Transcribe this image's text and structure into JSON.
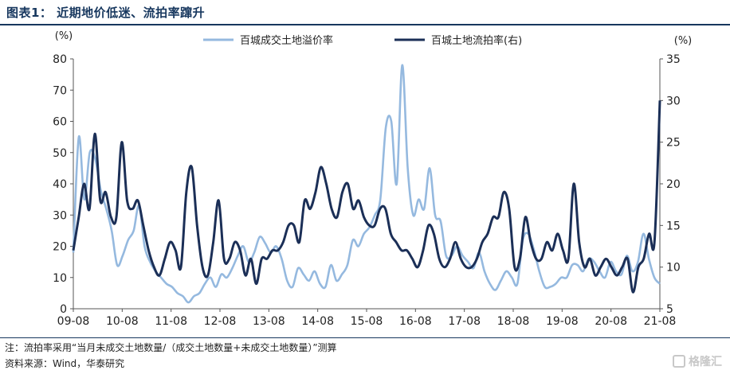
{
  "header": {
    "figure_title": "图表1：  近期地价低迷、流拍率蹿升"
  },
  "footer": {
    "note": "注：流拍率采用“当月未成交土地数量/（成交土地数量+未成交土地数量）”测算",
    "source": "资料来源：Wind，华泰研究",
    "watermark": "格隆汇"
  },
  "colors": {
    "premium": "#95B9DF",
    "failure": "#1B2F57",
    "title": "#17375E"
  },
  "chart_data": {
    "type": "line",
    "left_unit": "(%)",
    "right_unit": "(%)",
    "x_ticks": [
      "09-08",
      "10-08",
      "11-08",
      "12-08",
      "13-08",
      "14-08",
      "15-08",
      "16-08",
      "17-08",
      "18-08",
      "19-08",
      "20-08",
      "21-08"
    ],
    "ylim_left": [
      0,
      80
    ],
    "ylim_right": [
      5,
      35
    ],
    "y_ticks_left": [
      0,
      10,
      20,
      30,
      40,
      50,
      60,
      70,
      80
    ],
    "y_ticks_right": [
      5,
      10,
      15,
      20,
      25,
      30,
      35
    ],
    "legend_position": "top",
    "series": [
      {
        "name": "百城成交土地溢价率",
        "axis": "left",
        "color": "#95B9DF",
        "values": [
          18,
          55,
          35,
          50,
          48,
          38,
          32,
          25,
          14,
          17,
          22,
          25,
          33,
          20,
          15,
          12,
          10,
          8,
          7,
          5,
          4,
          2,
          4,
          5,
          8,
          10,
          7,
          11,
          10,
          13,
          17,
          20,
          15,
          18,
          23,
          21,
          18,
          20,
          16,
          9,
          7,
          13,
          11,
          9,
          12,
          8,
          7,
          14,
          9,
          11,
          14,
          22,
          20,
          24,
          26,
          30,
          35,
          58,
          60,
          40,
          78,
          45,
          30,
          35,
          32,
          45,
          30,
          28,
          17,
          17,
          20,
          17,
          15,
          13,
          18,
          12,
          8,
          6,
          9,
          12,
          10,
          8,
          22,
          24,
          19,
          12,
          7,
          7,
          8,
          10,
          10,
          14,
          14,
          12,
          16,
          15,
          12,
          10,
          15,
          12,
          11,
          17,
          12,
          15,
          24,
          16,
          10,
          8
        ]
      },
      {
        "name": "百城土地流拍率(右)",
        "axis": "right",
        "color": "#1B2F57",
        "values": [
          12,
          16,
          20,
          17,
          26,
          18,
          19,
          16,
          16,
          25,
          18,
          17,
          18,
          15,
          12,
          10,
          9,
          11,
          13,
          12,
          10,
          19,
          22,
          15,
          10,
          9,
          13,
          18,
          11,
          11,
          13,
          12,
          9,
          11,
          8,
          11,
          11,
          12,
          12,
          13,
          15,
          15,
          13,
          18,
          17,
          19,
          22,
          20,
          17,
          16,
          19,
          20,
          17,
          18,
          16,
          15,
          15,
          17,
          17,
          14,
          13,
          12,
          12,
          11,
          10,
          12,
          15,
          14,
          11,
          10,
          11,
          13,
          11,
          10,
          10,
          11,
          13,
          14,
          16,
          16,
          19,
          17,
          10,
          11,
          16,
          13,
          11,
          11,
          13,
          12,
          14,
          12,
          11,
          20,
          13,
          10,
          11,
          9,
          10,
          11,
          10,
          9,
          10,
          11,
          7,
          10,
          11,
          14,
          13,
          30
        ]
      }
    ]
  }
}
